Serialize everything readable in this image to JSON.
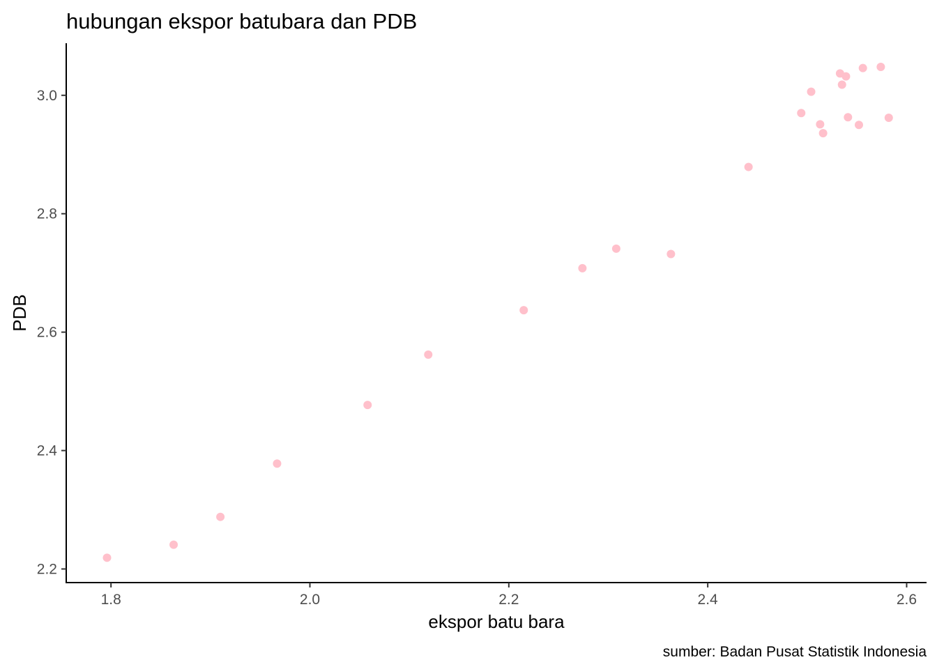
{
  "chart_data": {
    "type": "scatter",
    "title": "hubungan ekspor batubara dan PDB",
    "xlabel": "ekspor batu bara",
    "ylabel": "PDB",
    "caption": "sumber: Badan Pusat Statistik Indonesia",
    "xlim": [
      1.755,
      2.62
    ],
    "ylim": [
      2.177,
      3.088
    ],
    "xticks": [
      1.8,
      2.0,
      2.2,
      2.4,
      2.6
    ],
    "xtick_labels": [
      "1.8",
      "2.0",
      "2.2",
      "2.4",
      "2.6"
    ],
    "yticks": [
      2.2,
      2.4,
      2.6,
      2.8,
      3.0
    ],
    "ytick_labels": [
      "2.2",
      "2.4",
      "2.6",
      "2.8",
      "3.0"
    ],
    "grid": false,
    "point_color": "#FFC0CB",
    "series": [
      {
        "points": [
          {
            "x": 1.796,
            "y": 2.219
          },
          {
            "x": 1.863,
            "y": 2.241
          },
          {
            "x": 1.91,
            "y": 2.288
          },
          {
            "x": 1.967,
            "y": 2.378
          },
          {
            "x": 2.058,
            "y": 2.477
          },
          {
            "x": 2.119,
            "y": 2.562
          },
          {
            "x": 2.215,
            "y": 2.637
          },
          {
            "x": 2.274,
            "y": 2.708
          },
          {
            "x": 2.308,
            "y": 2.741
          },
          {
            "x": 2.363,
            "y": 2.732
          },
          {
            "x": 2.441,
            "y": 2.879
          },
          {
            "x": 2.494,
            "y": 2.97
          },
          {
            "x": 2.504,
            "y": 3.006
          },
          {
            "x": 2.513,
            "y": 2.951
          },
          {
            "x": 2.516,
            "y": 2.936
          },
          {
            "x": 2.533,
            "y": 3.037
          },
          {
            "x": 2.535,
            "y": 3.018
          },
          {
            "x": 2.539,
            "y": 3.032
          },
          {
            "x": 2.541,
            "y": 2.963
          },
          {
            "x": 2.552,
            "y": 2.95
          },
          {
            "x": 2.556,
            "y": 3.046
          },
          {
            "x": 2.574,
            "y": 3.048
          },
          {
            "x": 2.582,
            "y": 2.962
          }
        ]
      }
    ]
  }
}
